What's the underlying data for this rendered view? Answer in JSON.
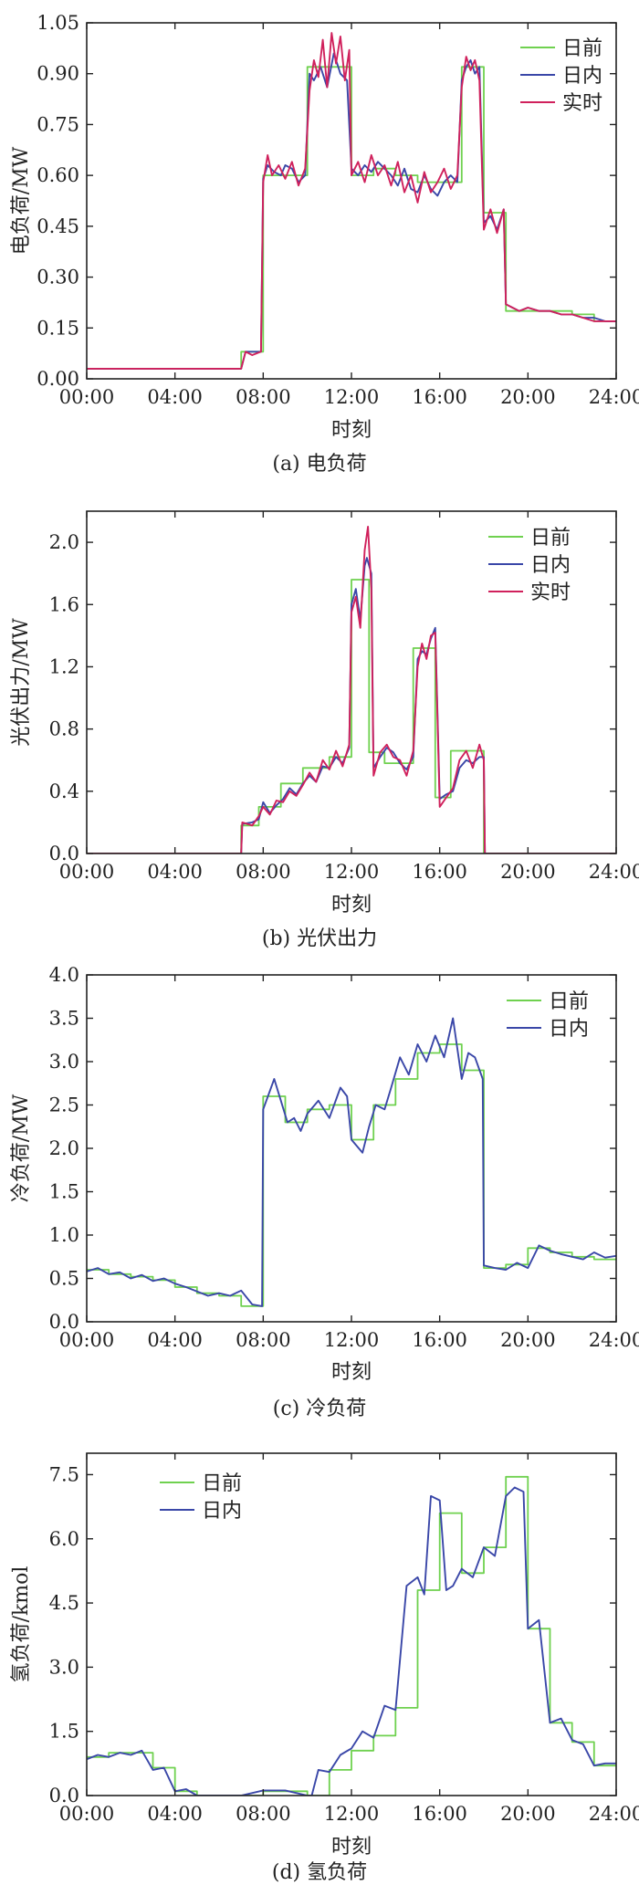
{
  "colors": {
    "day_ahead": "#6fd14f",
    "intraday": "#3a47a8",
    "realtime": "#d0215c",
    "axis": "#222222"
  },
  "chart_data": [
    {
      "id": "a",
      "type": "line",
      "caption": "(a) 电负荷",
      "xlabel": "时刻",
      "ylabel": "电负荷/MW",
      "xlim": [
        0,
        24
      ],
      "ylim": [
        0,
        1.05
      ],
      "xticks": [
        "00:00",
        "04:00",
        "08:00",
        "12:00",
        "16:00",
        "20:00",
        "24:00"
      ],
      "yticks": [
        "0.00",
        "0.15",
        "0.30",
        "0.45",
        "0.60",
        "0.75",
        "0.90",
        "1.05"
      ],
      "legend": "top-right",
      "series": [
        {
          "name": "日前",
          "key": "day_ahead",
          "step": true,
          "x": [
            0,
            1,
            2,
            3,
            4,
            5,
            6,
            7,
            7.5,
            8,
            9,
            10,
            11,
            12,
            13,
            14,
            15,
            16,
            17,
            17.5,
            18,
            18.5,
            19,
            20,
            21,
            22,
            23,
            24
          ],
          "y": [
            0.03,
            0.03,
            0.03,
            0.03,
            0.03,
            0.03,
            0.03,
            0.08,
            0.08,
            0.6,
            0.6,
            0.92,
            0.92,
            0.6,
            0.62,
            0.6,
            0.58,
            0.58,
            0.92,
            0.92,
            0.49,
            0.49,
            0.2,
            0.2,
            0.2,
            0.19,
            0.17,
            0.17
          ]
        },
        {
          "name": "日内",
          "key": "intraday",
          "x": [
            0,
            2,
            4,
            6,
            7,
            7.2,
            7.5,
            7.9,
            8.0,
            8.2,
            8.5,
            8.8,
            9.0,
            9.3,
            9.6,
            9.9,
            10.1,
            10.3,
            10.6,
            10.9,
            11.2,
            11.5,
            11.8,
            12.0,
            12.3,
            12.6,
            12.9,
            13.2,
            13.5,
            13.8,
            14.1,
            14.4,
            14.7,
            15.0,
            15.3,
            15.6,
            15.9,
            16.2,
            16.5,
            16.8,
            17.0,
            17.2,
            17.4,
            17.6,
            17.8,
            18.0,
            18.3,
            18.6,
            18.9,
            19.0,
            19.3,
            19.6,
            20.0,
            20.5,
            21,
            21.5,
            22,
            22.5,
            23,
            23.5,
            24
          ],
          "y": [
            0.03,
            0.03,
            0.03,
            0.03,
            0.03,
            0.08,
            0.08,
            0.08,
            0.59,
            0.63,
            0.61,
            0.6,
            0.63,
            0.62,
            0.58,
            0.6,
            0.9,
            0.88,
            0.92,
            0.86,
            0.96,
            0.9,
            0.88,
            0.62,
            0.6,
            0.63,
            0.61,
            0.64,
            0.62,
            0.6,
            0.57,
            0.62,
            0.56,
            0.55,
            0.6,
            0.56,
            0.54,
            0.58,
            0.6,
            0.58,
            0.88,
            0.92,
            0.94,
            0.9,
            0.92,
            0.46,
            0.48,
            0.44,
            0.5,
            0.22,
            0.21,
            0.2,
            0.21,
            0.2,
            0.2,
            0.19,
            0.19,
            0.18,
            0.18,
            0.17,
            0.17
          ]
        },
        {
          "name": "实时",
          "key": "realtime",
          "x": [
            0,
            2,
            4,
            6,
            7,
            7.2,
            7.5,
            7.9,
            8.0,
            8.2,
            8.4,
            8.7,
            9.0,
            9.3,
            9.6,
            9.9,
            10.1,
            10.3,
            10.5,
            10.7,
            10.9,
            11.1,
            11.3,
            11.5,
            11.7,
            11.9,
            12.0,
            12.3,
            12.6,
            12.9,
            13.2,
            13.5,
            13.8,
            14.1,
            14.4,
            14.7,
            15.0,
            15.3,
            15.6,
            15.9,
            16.2,
            16.5,
            16.8,
            17.0,
            17.2,
            17.4,
            17.6,
            17.8,
            18.0,
            18.3,
            18.6,
            18.9,
            19.0,
            19.3,
            19.6,
            20.0,
            20.5,
            21,
            21.5,
            22,
            22.5,
            23,
            23.5,
            24
          ],
          "y": [
            0.03,
            0.03,
            0.03,
            0.03,
            0.03,
            0.08,
            0.07,
            0.08,
            0.58,
            0.66,
            0.6,
            0.63,
            0.59,
            0.64,
            0.57,
            0.62,
            0.85,
            0.94,
            0.89,
            1.0,
            0.86,
            1.02,
            0.93,
            1.01,
            0.88,
            0.97,
            0.6,
            0.64,
            0.58,
            0.66,
            0.6,
            0.63,
            0.57,
            0.64,
            0.55,
            0.6,
            0.52,
            0.61,
            0.55,
            0.58,
            0.62,
            0.56,
            0.6,
            0.86,
            0.95,
            0.91,
            0.94,
            0.88,
            0.44,
            0.5,
            0.43,
            0.5,
            0.22,
            0.21,
            0.2,
            0.21,
            0.2,
            0.2,
            0.19,
            0.19,
            0.18,
            0.17,
            0.17,
            0.17
          ]
        }
      ]
    },
    {
      "id": "b",
      "type": "line",
      "caption": "(b) 光伏出力",
      "xlabel": "时刻",
      "ylabel": "光伏出力/MW",
      "xlim": [
        0,
        24
      ],
      "ylim": [
        0,
        2.2
      ],
      "xticks": [
        "00:00",
        "04:00",
        "08:00",
        "12:00",
        "16:00",
        "20:00",
        "24:00"
      ],
      "yticks": [
        "0.0",
        "0.4",
        "0.8",
        "1.2",
        "1.6",
        "2.0"
      ],
      "ytick_values": [
        0,
        0.4,
        0.8,
        1.2,
        1.6,
        2.0
      ],
      "legend": "top-right",
      "series": [
        {
          "name": "日前",
          "key": "day_ahead",
          "step": true,
          "x": [
            0,
            7,
            7.8,
            8.8,
            9.8,
            11,
            12,
            12.8,
            13.5,
            14.8,
            15.8,
            16.5,
            18,
            24
          ],
          "y": [
            0,
            0.18,
            0.3,
            0.45,
            0.55,
            0.62,
            1.76,
            0.65,
            0.58,
            1.32,
            0.36,
            0.66,
            0,
            0
          ]
        },
        {
          "name": "日内",
          "key": "intraday",
          "x": [
            0,
            7,
            7.05,
            7.5,
            7.8,
            8.0,
            8.3,
            8.6,
            8.9,
            9.2,
            9.5,
            9.8,
            10.1,
            10.4,
            10.7,
            11.0,
            11.3,
            11.6,
            11.9,
            12.0,
            12.2,
            12.4,
            12.6,
            12.7,
            12.9,
            13.0,
            13.3,
            13.6,
            13.9,
            14.2,
            14.5,
            14.8,
            15.0,
            15.2,
            15.4,
            15.6,
            15.8,
            16.0,
            16.3,
            16.6,
            16.9,
            17.2,
            17.5,
            17.8,
            18.0,
            18.05,
            24
          ],
          "y": [
            0,
            0,
            0.19,
            0.2,
            0.22,
            0.33,
            0.26,
            0.31,
            0.35,
            0.42,
            0.38,
            0.45,
            0.5,
            0.46,
            0.56,
            0.55,
            0.62,
            0.58,
            0.68,
            1.6,
            1.7,
            1.5,
            1.85,
            1.9,
            1.8,
            0.55,
            0.62,
            0.68,
            0.65,
            0.58,
            0.54,
            0.62,
            1.25,
            1.3,
            1.28,
            1.38,
            1.45,
            0.35,
            0.38,
            0.4,
            0.55,
            0.6,
            0.58,
            0.62,
            0.62,
            0,
            0
          ]
        },
        {
          "name": "实时",
          "key": "realtime",
          "x": [
            0,
            7,
            7.05,
            7.5,
            7.8,
            8.0,
            8.3,
            8.6,
            8.9,
            9.2,
            9.5,
            9.8,
            10.1,
            10.4,
            10.7,
            11.0,
            11.3,
            11.6,
            11.9,
            12.0,
            12.2,
            12.4,
            12.6,
            12.75,
            12.9,
            13.0,
            13.3,
            13.6,
            13.9,
            14.2,
            14.5,
            14.8,
            15.0,
            15.2,
            15.4,
            15.6,
            15.8,
            16.0,
            16.3,
            16.6,
            16.9,
            17.2,
            17.5,
            17.8,
            18.0,
            18.05,
            24
          ],
          "y": [
            0,
            0,
            0.2,
            0.18,
            0.24,
            0.3,
            0.25,
            0.34,
            0.33,
            0.4,
            0.37,
            0.44,
            0.52,
            0.46,
            0.6,
            0.54,
            0.66,
            0.56,
            0.7,
            1.55,
            1.65,
            1.45,
            1.95,
            2.1,
            1.7,
            0.5,
            0.65,
            0.7,
            0.62,
            0.6,
            0.5,
            0.66,
            1.2,
            1.35,
            1.25,
            1.4,
            1.42,
            0.3,
            0.36,
            0.42,
            0.6,
            0.66,
            0.55,
            0.7,
            0.6,
            0,
            0
          ]
        }
      ]
    },
    {
      "id": "c",
      "type": "line",
      "caption": "(c) 冷负荷",
      "xlabel": "时刻",
      "ylabel": "冷负荷/MW",
      "xlim": [
        0,
        24
      ],
      "ylim": [
        0,
        4.0
      ],
      "xticks": [
        "00:00",
        "04:00",
        "08:00",
        "12:00",
        "16:00",
        "20:00",
        "24:00"
      ],
      "yticks": [
        "0.0",
        "0.5",
        "1.0",
        "1.5",
        "2.0",
        "2.5",
        "3.0",
        "3.5",
        "4.0"
      ],
      "legend": "top-right",
      "series": [
        {
          "name": "日前",
          "key": "day_ahead",
          "step": true,
          "x": [
            0,
            1,
            2,
            3,
            4,
            5,
            6,
            7,
            8,
            9,
            10,
            11,
            12,
            13,
            14,
            15,
            16,
            17,
            18,
            19,
            20,
            21,
            22,
            23,
            24
          ],
          "y": [
            0.6,
            0.55,
            0.52,
            0.48,
            0.4,
            0.33,
            0.3,
            0.18,
            2.6,
            2.3,
            2.45,
            2.5,
            2.1,
            2.5,
            2.8,
            3.1,
            3.2,
            2.9,
            0.62,
            0.66,
            0.85,
            0.8,
            0.75,
            0.72,
            0.72
          ]
        },
        {
          "name": "日内",
          "key": "intraday",
          "x": [
            0,
            0.5,
            1,
            1.5,
            2,
            2.5,
            3,
            3.5,
            4,
            4.5,
            5,
            5.5,
            6,
            6.5,
            7,
            7.5,
            7.95,
            8.0,
            8.5,
            8.8,
            9.1,
            9.4,
            9.7,
            10,
            10.5,
            11,
            11.5,
            11.8,
            12,
            12.5,
            12.8,
            13.1,
            13.5,
            13.8,
            14.2,
            14.6,
            15,
            15.4,
            15.8,
            16.2,
            16.6,
            17,
            17.3,
            17.6,
            17.95,
            18.0,
            18.5,
            19,
            19.5,
            20,
            20.5,
            21,
            21.5,
            22,
            22.5,
            23,
            23.5,
            24
          ],
          "y": [
            0.58,
            0.62,
            0.55,
            0.57,
            0.5,
            0.54,
            0.47,
            0.5,
            0.44,
            0.4,
            0.35,
            0.3,
            0.33,
            0.3,
            0.36,
            0.2,
            0.18,
            2.45,
            2.8,
            2.55,
            2.3,
            2.35,
            2.2,
            2.4,
            2.55,
            2.35,
            2.7,
            2.6,
            2.1,
            1.95,
            2.25,
            2.5,
            2.45,
            2.7,
            3.05,
            2.85,
            3.2,
            3.0,
            3.3,
            3.05,
            3.5,
            2.8,
            3.1,
            3.05,
            2.8,
            0.65,
            0.62,
            0.6,
            0.68,
            0.62,
            0.88,
            0.82,
            0.78,
            0.75,
            0.72,
            0.8,
            0.74,
            0.76
          ]
        }
      ]
    },
    {
      "id": "d",
      "type": "line",
      "caption": "(d) 氢负荷",
      "xlabel": "时刻",
      "ylabel": "氢负荷/kmol",
      "xlim": [
        0,
        24
      ],
      "ylim": [
        0,
        8.0
      ],
      "xticks": [
        "00:00",
        "04:00",
        "08:00",
        "12:00",
        "16:00",
        "20:00",
        "24:00"
      ],
      "yticks": [
        "0.0",
        "1.5",
        "3.0",
        "4.5",
        "6.0",
        "7.5"
      ],
      "ytick_values": [
        0,
        1.5,
        3.0,
        4.5,
        6.0,
        7.5
      ],
      "legend": "top-left",
      "series": [
        {
          "name": "日前",
          "key": "day_ahead",
          "step": true,
          "x": [
            0,
            1,
            2,
            3,
            4,
            5,
            6,
            7,
            8,
            9,
            10,
            11,
            12,
            13,
            14,
            15,
            16,
            17,
            18,
            19,
            20,
            21,
            22,
            23,
            24
          ],
          "y": [
            0.9,
            1.0,
            1.0,
            0.65,
            0.1,
            0.0,
            0.0,
            0.0,
            0.1,
            0.1,
            0.0,
            0.6,
            1.05,
            1.4,
            2.05,
            4.8,
            6.6,
            5.2,
            5.8,
            7.45,
            3.9,
            1.7,
            1.25,
            0.7,
            0.7
          ]
        },
        {
          "name": "日内",
          "key": "intraday",
          "x": [
            0,
            0.5,
            1,
            1.5,
            2,
            2.5,
            3,
            3.5,
            4,
            4.5,
            5,
            5.5,
            6,
            7,
            8,
            9,
            10,
            10.2,
            10.5,
            11,
            11.5,
            12,
            12.5,
            13,
            13.5,
            14,
            14.5,
            15,
            15.3,
            15.6,
            16,
            16.3,
            16.6,
            17,
            17.5,
            18,
            18.5,
            19,
            19.4,
            19.8,
            20,
            20.5,
            21,
            21.5,
            22,
            22.5,
            23,
            23.5,
            24
          ],
          "y": [
            0.85,
            0.95,
            0.9,
            1.0,
            0.95,
            1.05,
            0.6,
            0.65,
            0.1,
            0.15,
            0.0,
            0.0,
            0.0,
            0.0,
            0.12,
            0.12,
            0.0,
            0.0,
            0.6,
            0.55,
            0.95,
            1.1,
            1.5,
            1.35,
            2.1,
            2.0,
            4.9,
            5.1,
            4.7,
            7.0,
            6.9,
            4.8,
            4.9,
            5.3,
            5.1,
            5.8,
            5.6,
            7.0,
            7.2,
            7.1,
            3.9,
            4.1,
            1.7,
            1.8,
            1.3,
            1.2,
            0.7,
            0.75,
            0.75
          ]
        }
      ]
    }
  ]
}
